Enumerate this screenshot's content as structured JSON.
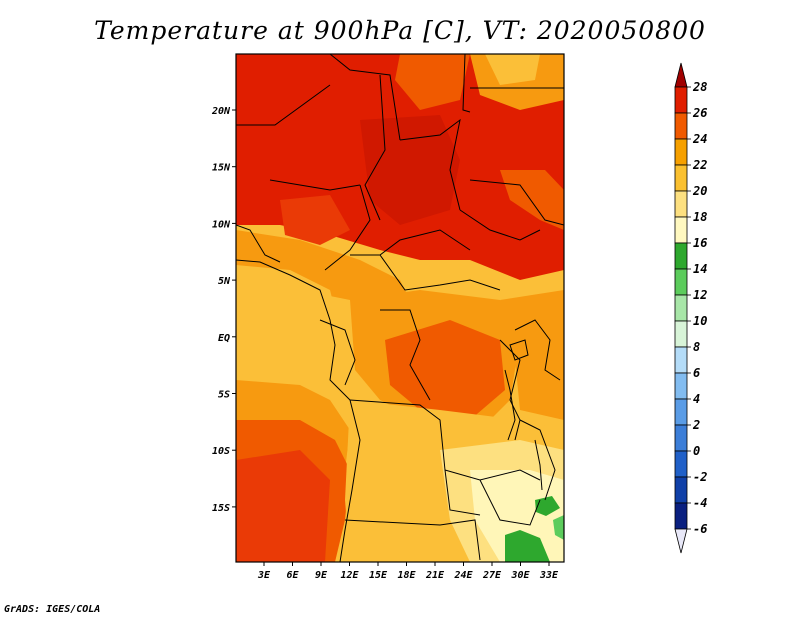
{
  "title": "Temperature at 900hPa [C], VT: 2020050800",
  "credit": "GrADS: IGES/COLA",
  "map": {
    "lon_labels": [
      "3E",
      "6E",
      "9E",
      "12E",
      "15E",
      "18E",
      "21E",
      "24E",
      "27E",
      "30E",
      "33E"
    ],
    "lat_labels": [
      "20N",
      "15N",
      "10N",
      "5N",
      "EQ",
      "5S",
      "10S",
      "15S"
    ]
  },
  "colorbar": {
    "levels": [
      "28",
      "26",
      "24",
      "22",
      "20",
      "18",
      "16",
      "14",
      "12",
      "10",
      "8",
      "6",
      "4",
      "2",
      "0",
      "-2",
      "-4",
      "-6"
    ],
    "colors": [
      "#a00000",
      "#e01e00",
      "#f05a00",
      "#f6a000",
      "#fac030",
      "#fde080",
      "#fff8c0",
      "#2ea82e",
      "#5ccc5c",
      "#a8e6a8",
      "#d8f4d8",
      "#b4dcf8",
      "#82bcf0",
      "#5a9ce6",
      "#3c7ed8",
      "#2060c8",
      "#1040a8",
      "#0a2080",
      "#000060",
      "#e8e8f8"
    ]
  },
  "field_colors": {
    "t28": "#e01e00",
    "t26": "#ea3a06",
    "t24": "#f05a00",
    "t22": "#f79a10",
    "t20": "#fbbf38",
    "t18": "#fde080",
    "t16": "#fff6b8",
    "t14": "#2ea82e",
    "border": "#000000",
    "ocean": "#fbbf38"
  }
}
